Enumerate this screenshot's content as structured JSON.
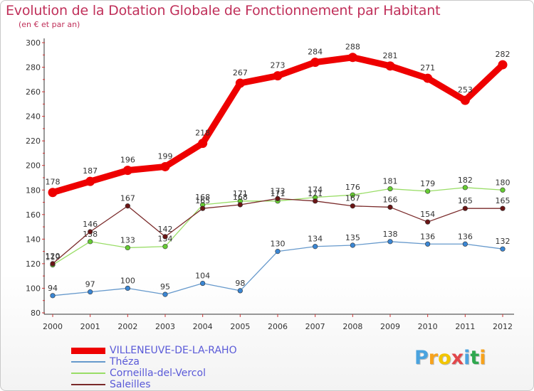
{
  "chart_data": {
    "type": "line",
    "title": "Evolution de la Dotation Globale de Fonctionnement par Habitant",
    "subtitle": "(en € et par an)",
    "xlabel": "",
    "ylabel": "",
    "ylim": [
      80,
      300
    ],
    "yticks": [
      80,
      100,
      120,
      140,
      160,
      180,
      200,
      220,
      240,
      260,
      280,
      300
    ],
    "categories": [
      "2000",
      "2001",
      "2002",
      "2003",
      "2004",
      "2005",
      "2006",
      "2007",
      "2008",
      "2009",
      "2010",
      "2011",
      "2012"
    ],
    "grid": false,
    "legend": "bottom-left",
    "series": [
      {
        "name": "VILLENEUVE-DE-LA-RAHO",
        "color": "#ee0000",
        "emphasis": true,
        "values": [
          178,
          187,
          196,
          199,
          218,
          267,
          273,
          284,
          288,
          281,
          271,
          253,
          282
        ],
        "labels": [
          "178",
          "187",
          "196",
          "199",
          "218",
          "267",
          "273",
          "284",
          "288",
          "281",
          "271",
          "253",
          "282"
        ]
      },
      {
        "name": "Théza",
        "color": "#6699cc",
        "marker": "#3a86d4",
        "values": [
          94,
          97,
          100,
          95,
          104,
          98,
          130,
          134,
          135,
          138,
          136,
          136,
          132
        ],
        "labels": [
          "94",
          "97",
          "100",
          "95",
          "104",
          "98",
          "130",
          "134",
          "135",
          "138",
          "136",
          "136",
          "132"
        ]
      },
      {
        "name": "Corneilla-del-Vercol",
        "color": "#99dd66",
        "marker": "#66cc33",
        "values": [
          119,
          138,
          133,
          134,
          168,
          171,
          171,
          174,
          176,
          181,
          179,
          182,
          180
        ],
        "labels": [
          "119",
          "138",
          "133",
          "134",
          "168",
          "171",
          "171",
          "174",
          "176",
          "181",
          "179",
          "182",
          "180"
        ]
      },
      {
        "name": "Saleilles",
        "color": "#7a2a2a",
        "marker": "#6a1515",
        "values": [
          120,
          146,
          167,
          142,
          165,
          168,
          173,
          171,
          167,
          166,
          154,
          165,
          165
        ],
        "labels": [
          "120",
          "146",
          "167",
          "142",
          "165",
          "168",
          "173",
          "171",
          "167",
          "166",
          "154",
          "165",
          "165"
        ]
      }
    ]
  },
  "legend": {
    "items": [
      {
        "label": "VILLENEUVE-DE-LA-RAHO",
        "color": "#ee0000"
      },
      {
        "label": "Théza",
        "color": "#6699cc"
      },
      {
        "label": "Corneilla-del-Vercol",
        "color": "#99dd66"
      },
      {
        "label": "Saleilles",
        "color": "#7a2a2a"
      }
    ]
  },
  "logo": {
    "letters": [
      "P",
      "r",
      "o",
      "x",
      "i",
      "t",
      "i"
    ],
    "colors": [
      "#4aa3df",
      "#f7a21b",
      "#f2c500",
      "#e2474b",
      "#4aa3df",
      "#2fa84f",
      "#f7a21b"
    ]
  }
}
